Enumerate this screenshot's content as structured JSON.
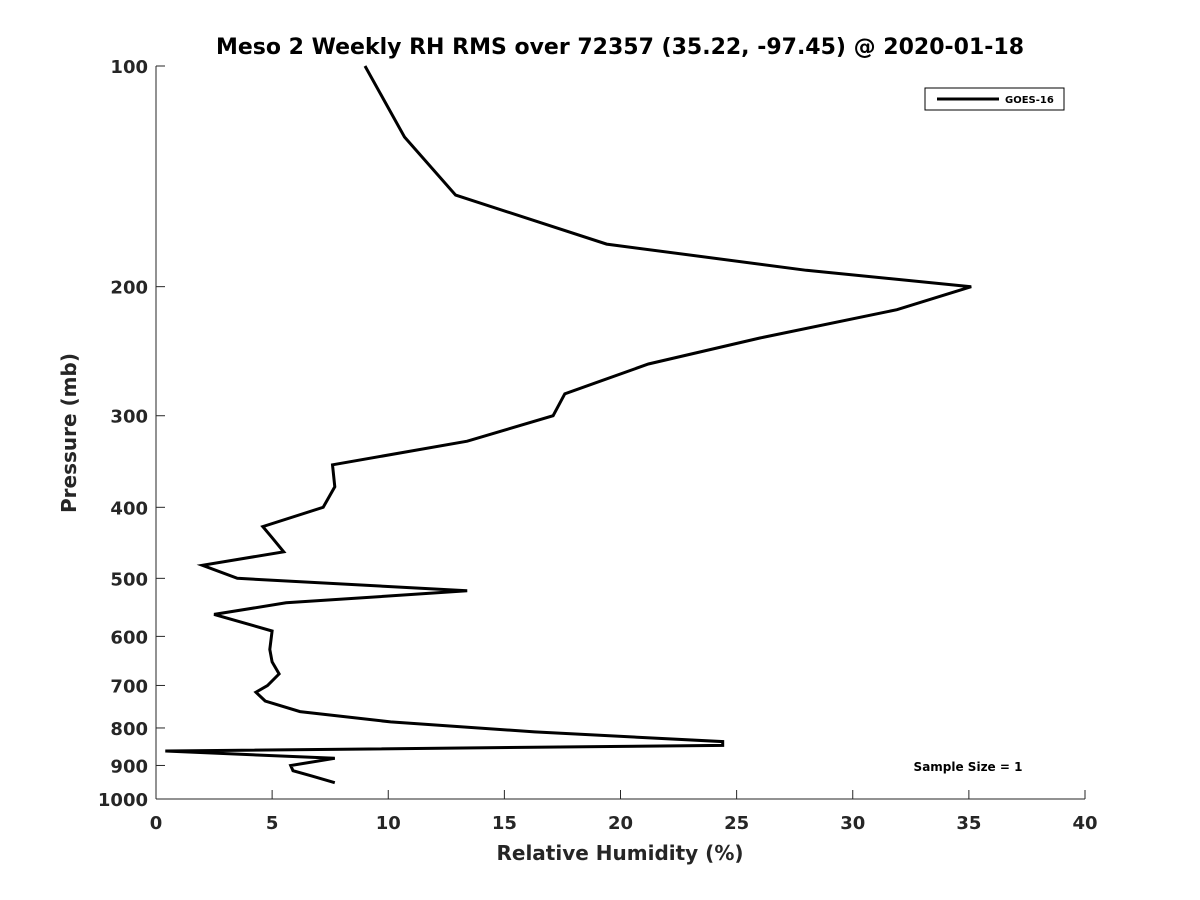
{
  "chart_data": {
    "type": "line",
    "title": "Meso 2 Weekly RH RMS over 72357 (35.22, -97.45) @ 2020-01-18",
    "xlabel": "Relative Humidity (%)",
    "ylabel": "Pressure (mb)",
    "xlim": [
      0,
      40
    ],
    "ylim": [
      100,
      1000
    ],
    "y_scale": "log",
    "y_reversed": true,
    "x_ticks": [
      0,
      5,
      10,
      15,
      20,
      25,
      30,
      35,
      40
    ],
    "y_ticks": [
      100,
      200,
      300,
      400,
      500,
      600,
      700,
      800,
      900,
      1000
    ],
    "grid": false,
    "legend_position": "top-right",
    "annotation": "Sample Size = 1",
    "series": [
      {
        "name": "GOES-16",
        "color": "#000000",
        "points": [
          [
            9.0,
            100
          ],
          [
            10.7,
            125
          ],
          [
            12.9,
            150
          ],
          [
            19.4,
            175
          ],
          [
            28.0,
            190
          ],
          [
            35.1,
            200
          ],
          [
            31.9,
            215
          ],
          [
            26.0,
            235
          ],
          [
            21.2,
            255
          ],
          [
            17.6,
            280
          ],
          [
            17.1,
            300
          ],
          [
            13.4,
            325
          ],
          [
            7.6,
            350
          ],
          [
            7.7,
            375
          ],
          [
            7.2,
            400
          ],
          [
            4.6,
            425
          ],
          [
            5.0,
            440
          ],
          [
            5.5,
            460
          ],
          [
            2.0,
            480
          ],
          [
            3.5,
            500
          ],
          [
            13.4,
            520
          ],
          [
            5.6,
            540
          ],
          [
            2.5,
            560
          ],
          [
            5.0,
            590
          ],
          [
            4.9,
            625
          ],
          [
            5.0,
            650
          ],
          [
            5.3,
            675
          ],
          [
            4.8,
            700
          ],
          [
            4.3,
            715
          ],
          [
            4.7,
            735
          ],
          [
            6.2,
            760
          ],
          [
            10.1,
            785
          ],
          [
            16.3,
            810
          ],
          [
            24.4,
            835
          ],
          [
            24.4,
            845
          ],
          [
            0.4,
            860
          ],
          [
            7.7,
            880
          ],
          [
            5.8,
            900
          ],
          [
            5.9,
            915
          ],
          [
            6.7,
            930
          ],
          [
            7.7,
            950
          ]
        ]
      }
    ]
  }
}
